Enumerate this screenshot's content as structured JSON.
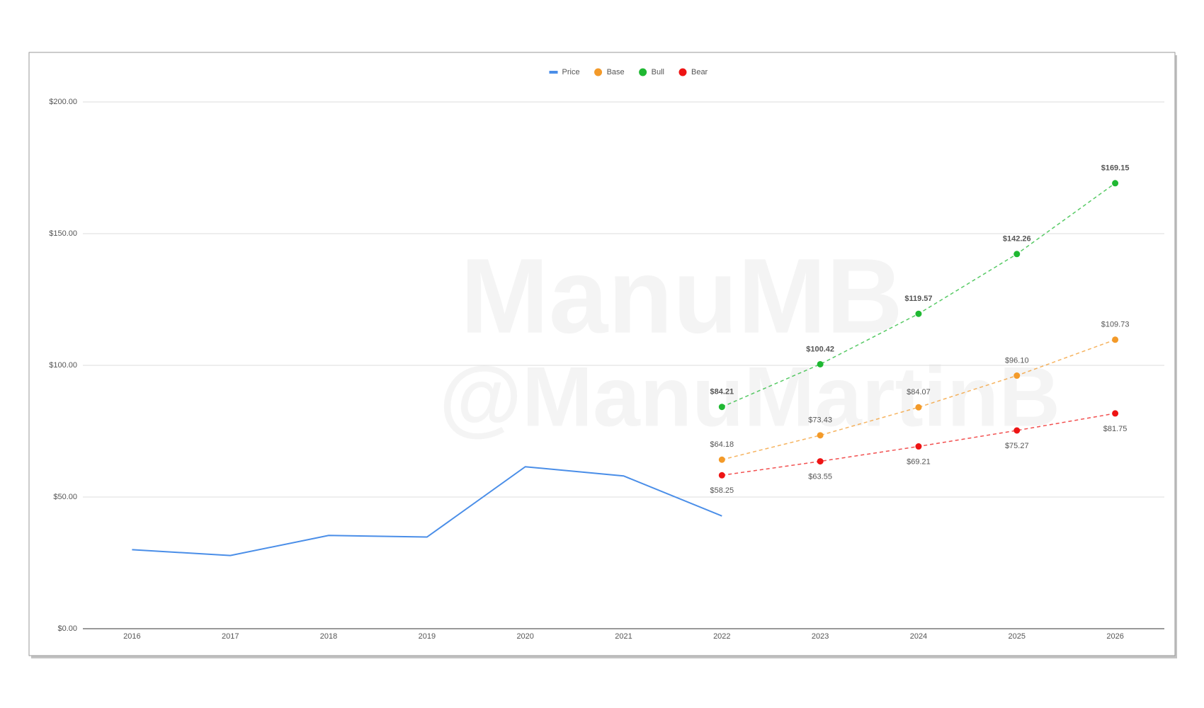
{
  "chart_data": {
    "type": "line",
    "watermark": [
      "ManuMB",
      "@ManuMartinB"
    ],
    "categories": [
      "2016",
      "2017",
      "2018",
      "2019",
      "2020",
      "2021",
      "2022",
      "2023",
      "2024",
      "2025",
      "2026"
    ],
    "series": [
      {
        "name": "Price",
        "color": "#4a8ee8",
        "dashed": false,
        "markers": false,
        "values": [
          30,
          27.8,
          35.4,
          34.8,
          61.5,
          58,
          42.8,
          null,
          null,
          null,
          null
        ]
      },
      {
        "name": "Base",
        "color": "#f39a29",
        "dashed": true,
        "markers": true,
        "label_position": "above",
        "values": [
          null,
          null,
          null,
          null,
          null,
          null,
          64.18,
          73.43,
          84.07,
          96.1,
          109.73
        ],
        "value_labels": [
          null,
          null,
          null,
          null,
          null,
          null,
          "$64.18",
          "$73.43",
          "$84.07",
          "$96.10",
          "$109.73"
        ]
      },
      {
        "name": "Bull",
        "color": "#1fb832",
        "dashed": true,
        "markers": true,
        "label_position": "above",
        "label_bold": true,
        "values": [
          null,
          null,
          null,
          null,
          null,
          null,
          84.21,
          100.42,
          119.57,
          142.26,
          169.15
        ],
        "value_labels": [
          null,
          null,
          null,
          null,
          null,
          null,
          "$84.21",
          "$100.42",
          "$119.57",
          "$142.26",
          "$169.15"
        ]
      },
      {
        "name": "Bear",
        "color": "#ee1414",
        "dashed": true,
        "markers": true,
        "label_position": "below",
        "values": [
          null,
          null,
          null,
          null,
          null,
          null,
          58.25,
          63.55,
          69.21,
          75.27,
          81.75
        ],
        "value_labels": [
          null,
          null,
          null,
          null,
          null,
          null,
          "$58.25",
          "$63.55",
          "$69.21",
          "$75.27",
          "$81.75"
        ]
      }
    ],
    "ylim": [
      0,
      200
    ],
    "yticks": [
      {
        "value": 0,
        "label": "$0.00"
      },
      {
        "value": 50,
        "label": "$50.00"
      },
      {
        "value": 100,
        "label": "$100.00"
      },
      {
        "value": 150,
        "label": "$150.00"
      },
      {
        "value": 200,
        "label": "$200.00"
      }
    ],
    "grid": true,
    "legend": "top"
  }
}
